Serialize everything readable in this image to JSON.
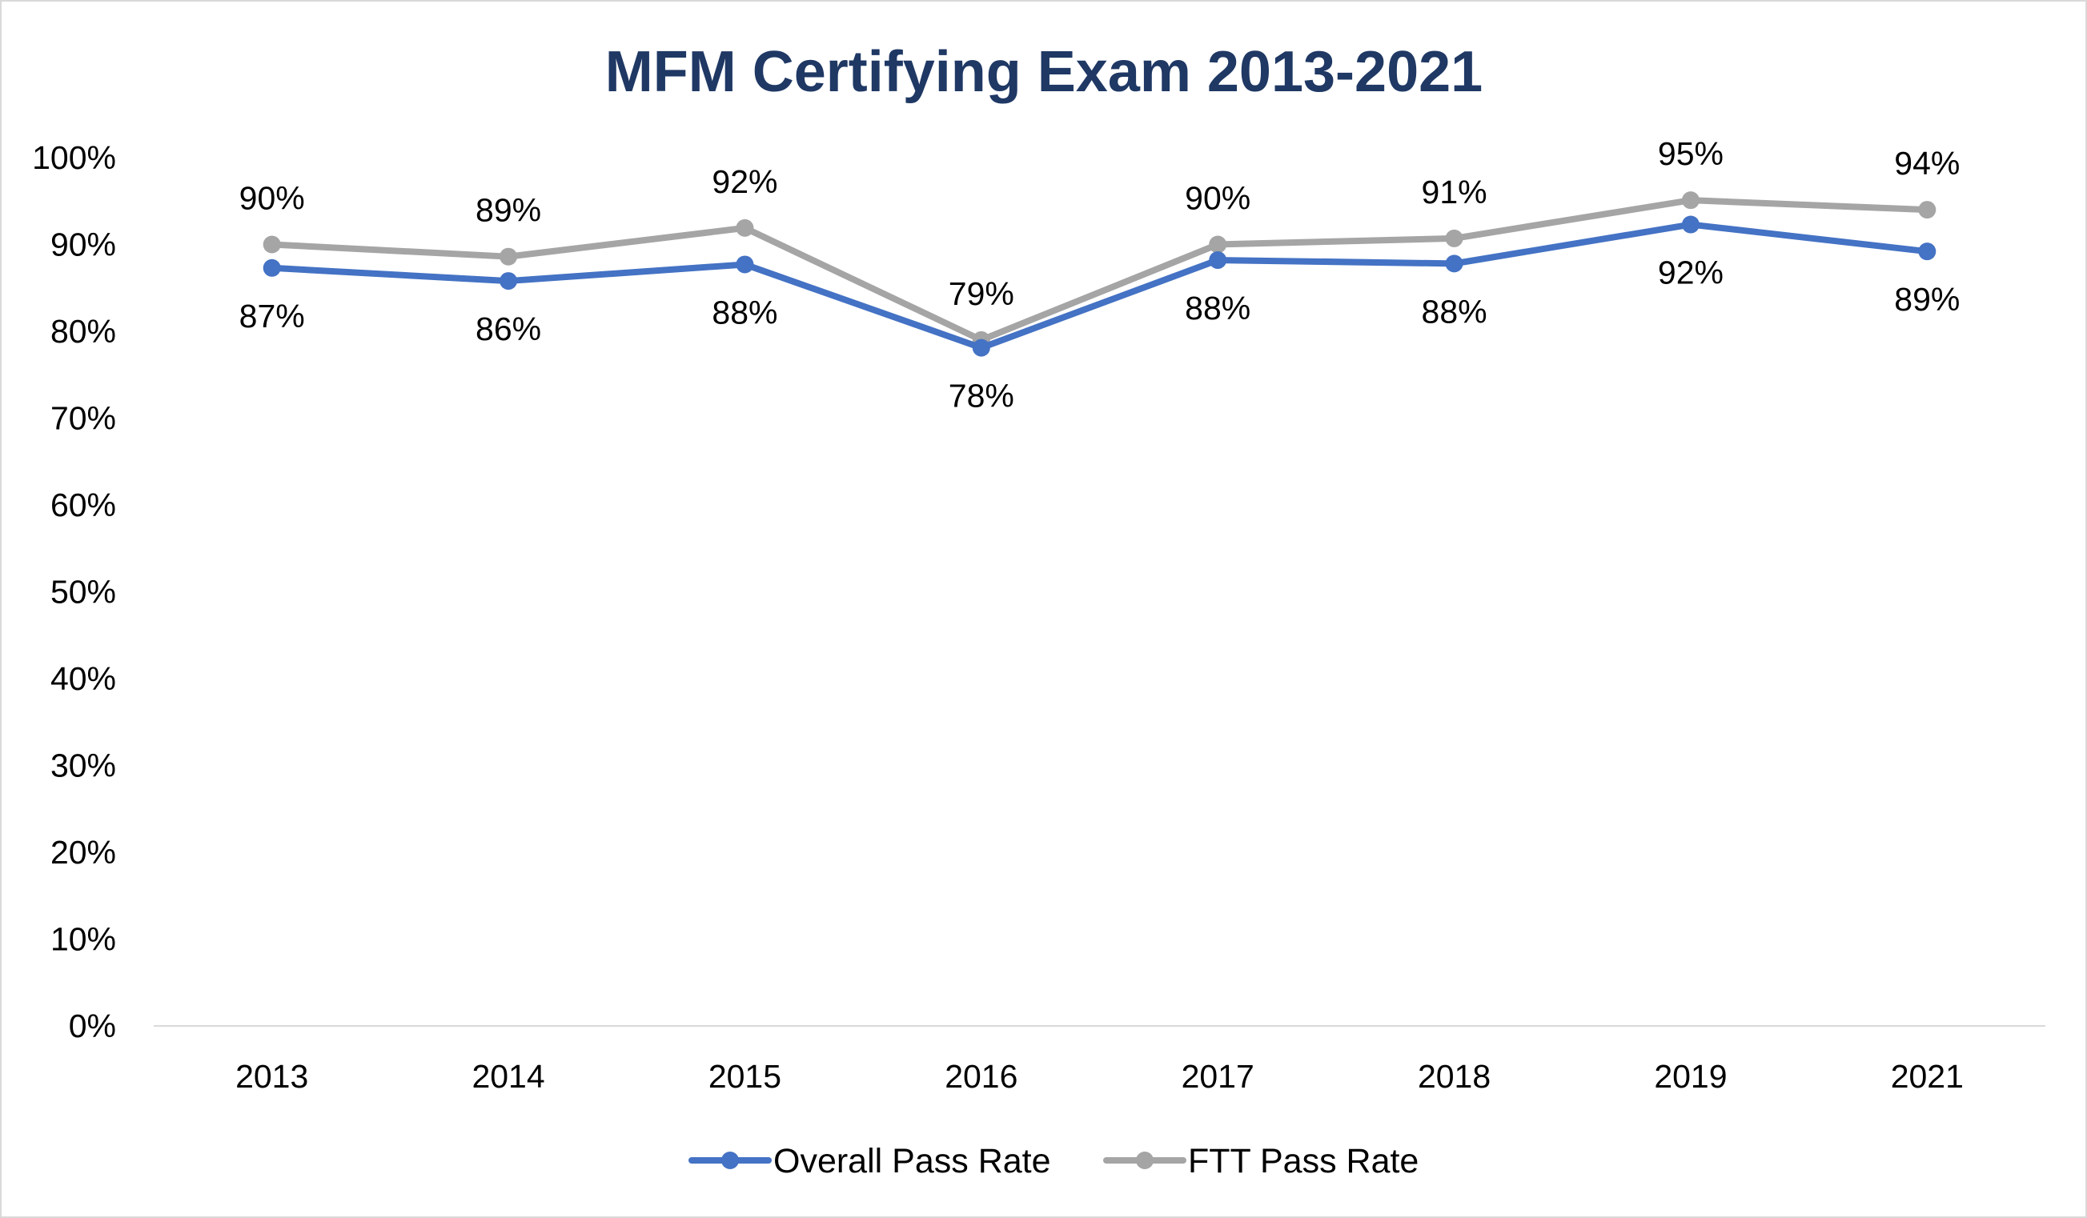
{
  "chart_data": {
    "type": "line",
    "title": "MFM Certifying Exam 2013-2021",
    "title_color": "#1f3864",
    "categories": [
      "2013",
      "2014",
      "2015",
      "2016",
      "2017",
      "2018",
      "2019",
      "2021"
    ],
    "y_ticks": [
      "0%",
      "10%",
      "20%",
      "30%",
      "40%",
      "50%",
      "60%",
      "70%",
      "80%",
      "90%",
      "100%"
    ],
    "ylim": [
      0,
      100
    ],
    "y_unit": "%",
    "grid": false,
    "legend_position": "bottom",
    "series": [
      {
        "name": "Overall Pass Rate",
        "color": "#4472c4",
        "values": [
          87.3,
          85.8,
          87.7,
          78.1,
          88.2,
          87.8,
          92.3,
          89.2
        ],
        "labels": [
          "87%",
          "86%",
          "88%",
          "78%",
          "88%",
          "88%",
          "92%",
          "89%"
        ],
        "label_placement": "below"
      },
      {
        "name": "FTT Pass Rate",
        "color": "#a5a5a5",
        "values": [
          90.0,
          88.6,
          91.9,
          79.0,
          90.0,
          90.7,
          95.1,
          94.0
        ],
        "labels": [
          "90%",
          "89%",
          "92%",
          "79%",
          "90%",
          "91%",
          "95%",
          "94%"
        ],
        "label_placement": "above"
      }
    ]
  }
}
